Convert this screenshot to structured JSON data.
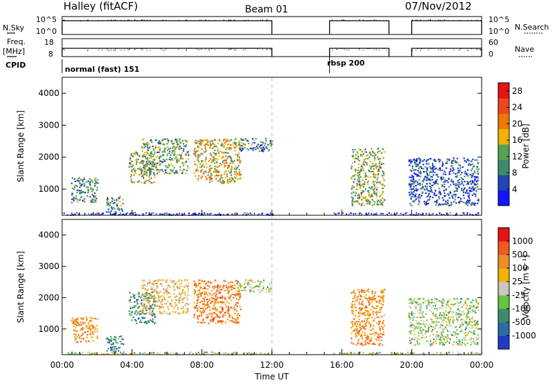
{
  "header": {
    "station": "Halley (fitACF)",
    "beam": "Beam 01",
    "date": "07/Nov/2012"
  },
  "strips": {
    "nsky_label": "N.Sky",
    "nsky_ticks": [
      "10^5",
      "10^0"
    ],
    "nsearch_label": "N.Search",
    "nsearch_ticks": [
      "10^5",
      "10^0"
    ],
    "freq_label": "Freq.",
    "freq_unit": "[MHz]",
    "freq_ticks": [
      "18",
      "8"
    ],
    "nave_label": "Nave",
    "nave_ticks": [
      "60",
      "0"
    ],
    "cpid_label": "CPID",
    "cpid_segments": [
      {
        "label": "normal (fast) 151",
        "start_h": 0,
        "end_h": 15.3
      },
      {
        "label": "rbsp 200",
        "start_h": 15.3,
        "end_h": 24
      }
    ],
    "data_segments": [
      [
        0,
        12.0
      ],
      [
        15.3,
        18.7
      ],
      [
        20.0,
        24.0
      ]
    ]
  },
  "chart_data": [
    {
      "type": "heatmap",
      "name": "power",
      "ylabel": "Slant Range [km]",
      "xlim_h": [
        0,
        24
      ],
      "ylim_km": [
        180,
        4500
      ],
      "y_ticks": [
        "1000",
        "2000",
        "3000",
        "4000"
      ],
      "colorbar": {
        "label": "Power [dB]",
        "ticks": [
          "4",
          "8",
          "12",
          "16",
          "20",
          "24",
          "28"
        ],
        "range": [
          0,
          30
        ],
        "colors": [
          "#1414ff",
          "#2045b4",
          "#3c8a6e",
          "#52a452",
          "#f0b400",
          "#f07800",
          "#f0461e",
          "#e61414"
        ]
      },
      "features": [
        {
          "t": [
            0.5,
            2.0
          ],
          "r": [
            600,
            1400
          ],
          "level": 0.32
        },
        {
          "t": [
            2.5,
            3.5
          ],
          "r": [
            300,
            800
          ],
          "level": 0.34
        },
        {
          "t": [
            3.8,
            5.3
          ],
          "r": [
            1200,
            2200
          ],
          "level": 0.45
        },
        {
          "t": [
            4.5,
            7.2
          ],
          "r": [
            1500,
            2600
          ],
          "level": 0.4
        },
        {
          "t": [
            7.5,
            10.2
          ],
          "r": [
            1200,
            2600
          ],
          "level": 0.55
        },
        {
          "t": [
            10.0,
            12.0
          ],
          "r": [
            2200,
            2600
          ],
          "level": 0.3
        },
        {
          "t": [
            16.5,
            18.4
          ],
          "r": [
            500,
            2300
          ],
          "level": 0.45
        },
        {
          "t": [
            19.8,
            23.8
          ],
          "r": [
            500,
            2000
          ],
          "level": 0.2
        }
      ]
    },
    {
      "type": "heatmap",
      "name": "velocity",
      "ylabel": "Slant Range [km]",
      "xlabel": "Time UT",
      "x_ticks": [
        "00:00",
        "04:00",
        "08:00",
        "12:00",
        "16:00",
        "20:00",
        "00:00"
      ],
      "xlim_h": [
        0,
        24
      ],
      "ylim_km": [
        180,
        4500
      ],
      "y_ticks": [
        "1000",
        "2000",
        "3000",
        "4000"
      ],
      "colorbar": {
        "label": "Velocity [m s⁻¹]",
        "ticks": [
          "1000",
          "500",
          "100",
          "25",
          "-25",
          "-100",
          "-500",
          "-1000"
        ],
        "colors": [
          "#1e3cc8",
          "#2e6aa8",
          "#3c8a6e",
          "#66c43c",
          "#c8c8c0",
          "#f0b400",
          "#f08c28",
          "#f05a1e",
          "#e61414"
        ]
      },
      "features": [
        {
          "t": [
            0.5,
            2.0
          ],
          "r": [
            600,
            1400
          ],
          "level": 0.7
        },
        {
          "t": [
            2.5,
            3.5
          ],
          "r": [
            300,
            800
          ],
          "level": 0.2
        },
        {
          "t": [
            3.8,
            5.3
          ],
          "r": [
            1200,
            2200
          ],
          "level": 0.25
        },
        {
          "t": [
            4.5,
            7.2
          ],
          "r": [
            1500,
            2600
          ],
          "level": 0.6
        },
        {
          "t": [
            7.5,
            10.2
          ],
          "r": [
            1200,
            2600
          ],
          "level": 0.75
        },
        {
          "t": [
            10.0,
            12.0
          ],
          "r": [
            2200,
            2600
          ],
          "level": 0.45
        },
        {
          "t": [
            16.5,
            18.4
          ],
          "r": [
            500,
            2300
          ],
          "level": 0.72
        },
        {
          "t": [
            19.8,
            23.8
          ],
          "r": [
            500,
            2000
          ],
          "level": 0.45
        }
      ]
    }
  ]
}
